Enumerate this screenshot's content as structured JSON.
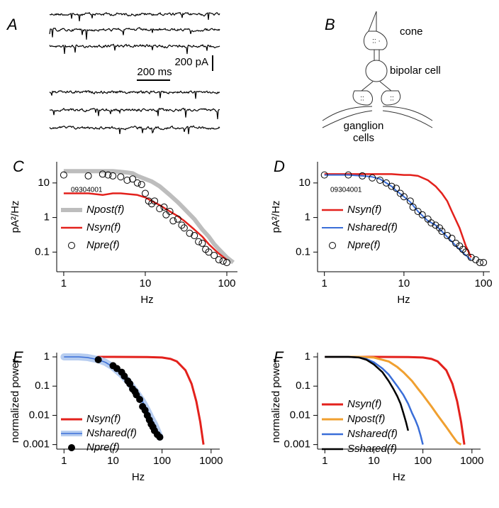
{
  "panel_a": {
    "label": "A",
    "scale_current": "200 pA",
    "scale_time": "200 ms"
  },
  "panel_b": {
    "label": "B",
    "cone": "cone",
    "bipolar": "bipolar cell",
    "ganglion_1": "ganglion",
    "ganglion_2": "cells"
  },
  "chart_data": [
    {
      "type": "line",
      "label": "C",
      "annotation": "09304001",
      "x_label": "Hz",
      "y_label": "pA²/Hz",
      "log_x": true,
      "log_y": true,
      "xlim": [
        0.82,
        135
      ],
      "ylim": [
        0.027,
        41
      ],
      "xticks": [
        1,
        10,
        100
      ],
      "yticks": [
        0.1,
        1,
        10
      ],
      "legend": "lower left",
      "series": [
        {
          "name": "Npost(f)",
          "color": "#bdbdbd",
          "line_width": 6,
          "x": [
            1,
            2,
            3,
            4,
            5,
            6,
            7,
            8,
            10,
            12,
            15,
            20,
            25,
            30,
            40,
            50,
            60,
            70,
            80,
            100,
            120
          ],
          "values": [
            22,
            22,
            22,
            22,
            21,
            20,
            19,
            16,
            13,
            11,
            8,
            4.5,
            2.8,
            1.8,
            0.9,
            0.45,
            0.28,
            0.17,
            0.12,
            0.07,
            0.05
          ]
        },
        {
          "name": "Nsyn(f)",
          "color": "#e3211c",
          "line_width": 2.5,
          "x": [
            1,
            2,
            3,
            4,
            5,
            6,
            8,
            10,
            12,
            15,
            20,
            25,
            30,
            40,
            50,
            60,
            70,
            80,
            100
          ],
          "values": [
            5,
            5,
            4.5,
            5,
            5,
            4.8,
            4.5,
            3.8,
            3,
            2.3,
            1.5,
            1.1,
            0.8,
            0.45,
            0.28,
            0.17,
            0.12,
            0.09,
            0.06
          ]
        },
        {
          "name": "Npre(f)",
          "color": "#000000",
          "marker": "open-circle",
          "x": [
            1,
            2,
            3,
            3.5,
            4,
            5,
            6,
            7,
            8,
            9,
            10,
            11,
            12,
            13,
            15,
            17,
            18,
            20,
            22,
            25,
            28,
            30,
            35,
            40,
            45,
            50,
            55,
            60,
            70,
            80,
            90,
            100
          ],
          "values": [
            17,
            16,
            18,
            17,
            16,
            15,
            12,
            13,
            10,
            9,
            5,
            3,
            2.5,
            3,
            1.8,
            2,
            1.2,
            1.5,
            0.8,
            0.9,
            0.6,
            0.5,
            0.35,
            0.3,
            0.2,
            0.18,
            0.12,
            0.1,
            0.08,
            0.06,
            0.055,
            0.05
          ]
        }
      ]
    },
    {
      "type": "line",
      "label": "D",
      "annotation": "09304001",
      "x_label": "Hz",
      "y_label": "pA²/Hz",
      "log_x": true,
      "log_y": true,
      "xlim": [
        0.82,
        120
      ],
      "ylim": [
        0.027,
        41
      ],
      "xticks": [
        1,
        10,
        100
      ],
      "yticks": [
        0.1,
        1,
        10
      ],
      "legend": "lower left",
      "series": [
        {
          "name": "Nsyn(f)",
          "color": "#e3211c",
          "line_width": 2.5,
          "x": [
            1,
            2,
            3,
            5,
            7,
            10,
            12,
            15,
            20,
            25,
            30,
            35,
            40,
            50,
            60,
            70
          ],
          "values": [
            18,
            18,
            18,
            18,
            18,
            17,
            17,
            16,
            12,
            8,
            5,
            3,
            1.5,
            0.5,
            0.15,
            0.07
          ]
        },
        {
          "name": "Nshared(f)",
          "color": "#3a6ed8",
          "line_width": 2,
          "x": [
            1,
            2,
            3,
            4,
            5,
            6,
            7,
            8,
            10,
            12,
            15,
            20,
            25,
            30,
            40,
            50,
            60,
            70
          ],
          "values": [
            17,
            17,
            16,
            15,
            13,
            10,
            8,
            6,
            4,
            2.8,
            1.5,
            0.8,
            0.6,
            0.4,
            0.2,
            0.12,
            0.08,
            0.06
          ]
        },
        {
          "name": "Npre(f)",
          "color": "#000000",
          "marker": "open-circle",
          "x": [
            1,
            2,
            3,
            4,
            5,
            6,
            7,
            8,
            9,
            10,
            12,
            13,
            15,
            17,
            20,
            22,
            25,
            28,
            30,
            35,
            40,
            45,
            50,
            55,
            60,
            70,
            80,
            90,
            100
          ],
          "values": [
            17,
            17,
            16,
            14,
            12,
            10,
            8,
            7,
            5,
            4,
            3,
            2,
            1.5,
            1.2,
            0.9,
            0.7,
            0.6,
            0.5,
            0.4,
            0.3,
            0.25,
            0.18,
            0.15,
            0.12,
            0.1,
            0.07,
            0.06,
            0.05,
            0.05
          ]
        }
      ]
    },
    {
      "type": "line",
      "label": "E",
      "x_label": "Hz",
      "y_label": "normalized power",
      "log_x": true,
      "log_y": true,
      "xlim": [
        0.71,
        1500
      ],
      "ylim": [
        0.0007,
        1.4
      ],
      "xticks": [
        1,
        10,
        100,
        1000
      ],
      "yticks": [
        0.001,
        0.01,
        0.1,
        1
      ],
      "legend": "lower left",
      "series": [
        {
          "name": "Nsyn(f)",
          "color": "#e3211c",
          "line_width": 3,
          "x": [
            1,
            10,
            50,
            100,
            150,
            200,
            300,
            400,
            500,
            600,
            700
          ],
          "values": [
            1,
            1,
            0.99,
            0.95,
            0.85,
            0.7,
            0.35,
            0.12,
            0.03,
            0.006,
            0.001
          ]
        },
        {
          "name": "Nshared(f)",
          "color": "#3a6ed8",
          "band_color": "#b7cdf0",
          "line_width": 1.5,
          "x": [
            1,
            2,
            3,
            5,
            7,
            10,
            15,
            20,
            30,
            40,
            50,
            60,
            70,
            80,
            90
          ],
          "values": [
            1,
            1,
            0.95,
            0.8,
            0.65,
            0.45,
            0.25,
            0.15,
            0.06,
            0.03,
            0.015,
            0.008,
            0.005,
            0.003,
            0.0018
          ]
        },
        {
          "name": "Npre(f)",
          "color": "#000000",
          "marker": "filled-circle",
          "x": [
            5,
            10,
            12,
            15,
            17,
            20,
            22,
            25,
            28,
            30,
            35,
            40,
            45,
            50,
            55,
            60,
            65,
            70,
            80,
            90
          ],
          "values": [
            0.8,
            0.5,
            0.4,
            0.3,
            0.22,
            0.15,
            0.12,
            0.08,
            0.065,
            0.05,
            0.035,
            0.02,
            0.015,
            0.01,
            0.007,
            0.005,
            0.004,
            0.003,
            0.0022,
            0.0018
          ]
        }
      ]
    },
    {
      "type": "line",
      "label": "F",
      "x_label": "Hz",
      "y_label": "normalized power",
      "log_x": true,
      "log_y": true,
      "xlim": [
        0.71,
        1500
      ],
      "ylim": [
        0.0007,
        1.4
      ],
      "xticks": [
        1,
        10,
        100,
        1000
      ],
      "yticks": [
        0.001,
        0.01,
        0.1,
        1
      ],
      "legend": "lower left",
      "series": [
        {
          "name": "Nsyn(f)",
          "color": "#e3211c",
          "line_width": 3,
          "x": [
            1,
            10,
            50,
            100,
            150,
            200,
            300,
            400,
            500,
            600,
            700
          ],
          "values": [
            1,
            1,
            0.99,
            0.95,
            0.85,
            0.7,
            0.35,
            0.12,
            0.03,
            0.006,
            0.001
          ]
        },
        {
          "name": "Npost(f)",
          "color": "#f0a030",
          "line_width": 3,
          "x": [
            1,
            5,
            10,
            20,
            30,
            40,
            60,
            80,
            100,
            150,
            200,
            300,
            400,
            500,
            600
          ],
          "values": [
            1,
            1,
            0.95,
            0.7,
            0.45,
            0.3,
            0.15,
            0.08,
            0.05,
            0.02,
            0.01,
            0.004,
            0.002,
            0.0012,
            0.001
          ]
        },
        {
          "name": "Nshared(f)",
          "color": "#3a6ed8",
          "line_width": 2.5,
          "x": [
            1,
            3,
            5,
            7,
            10,
            15,
            20,
            30,
            40,
            50,
            60,
            70,
            80,
            90,
            100
          ],
          "values": [
            1,
            1,
            0.95,
            0.85,
            0.65,
            0.4,
            0.25,
            0.1,
            0.05,
            0.025,
            0.012,
            0.007,
            0.004,
            0.002,
            0.001
          ]
        },
        {
          "name": "Sshared(f)",
          "color": "#000000",
          "line_width": 2.5,
          "x": [
            1,
            3,
            5,
            7,
            10,
            15,
            20,
            25,
            30,
            35,
            40,
            45,
            50
          ],
          "values": [
            1,
            1,
            0.95,
            0.8,
            0.55,
            0.3,
            0.15,
            0.08,
            0.045,
            0.025,
            0.012,
            0.006,
            0.003
          ]
        }
      ]
    }
  ]
}
